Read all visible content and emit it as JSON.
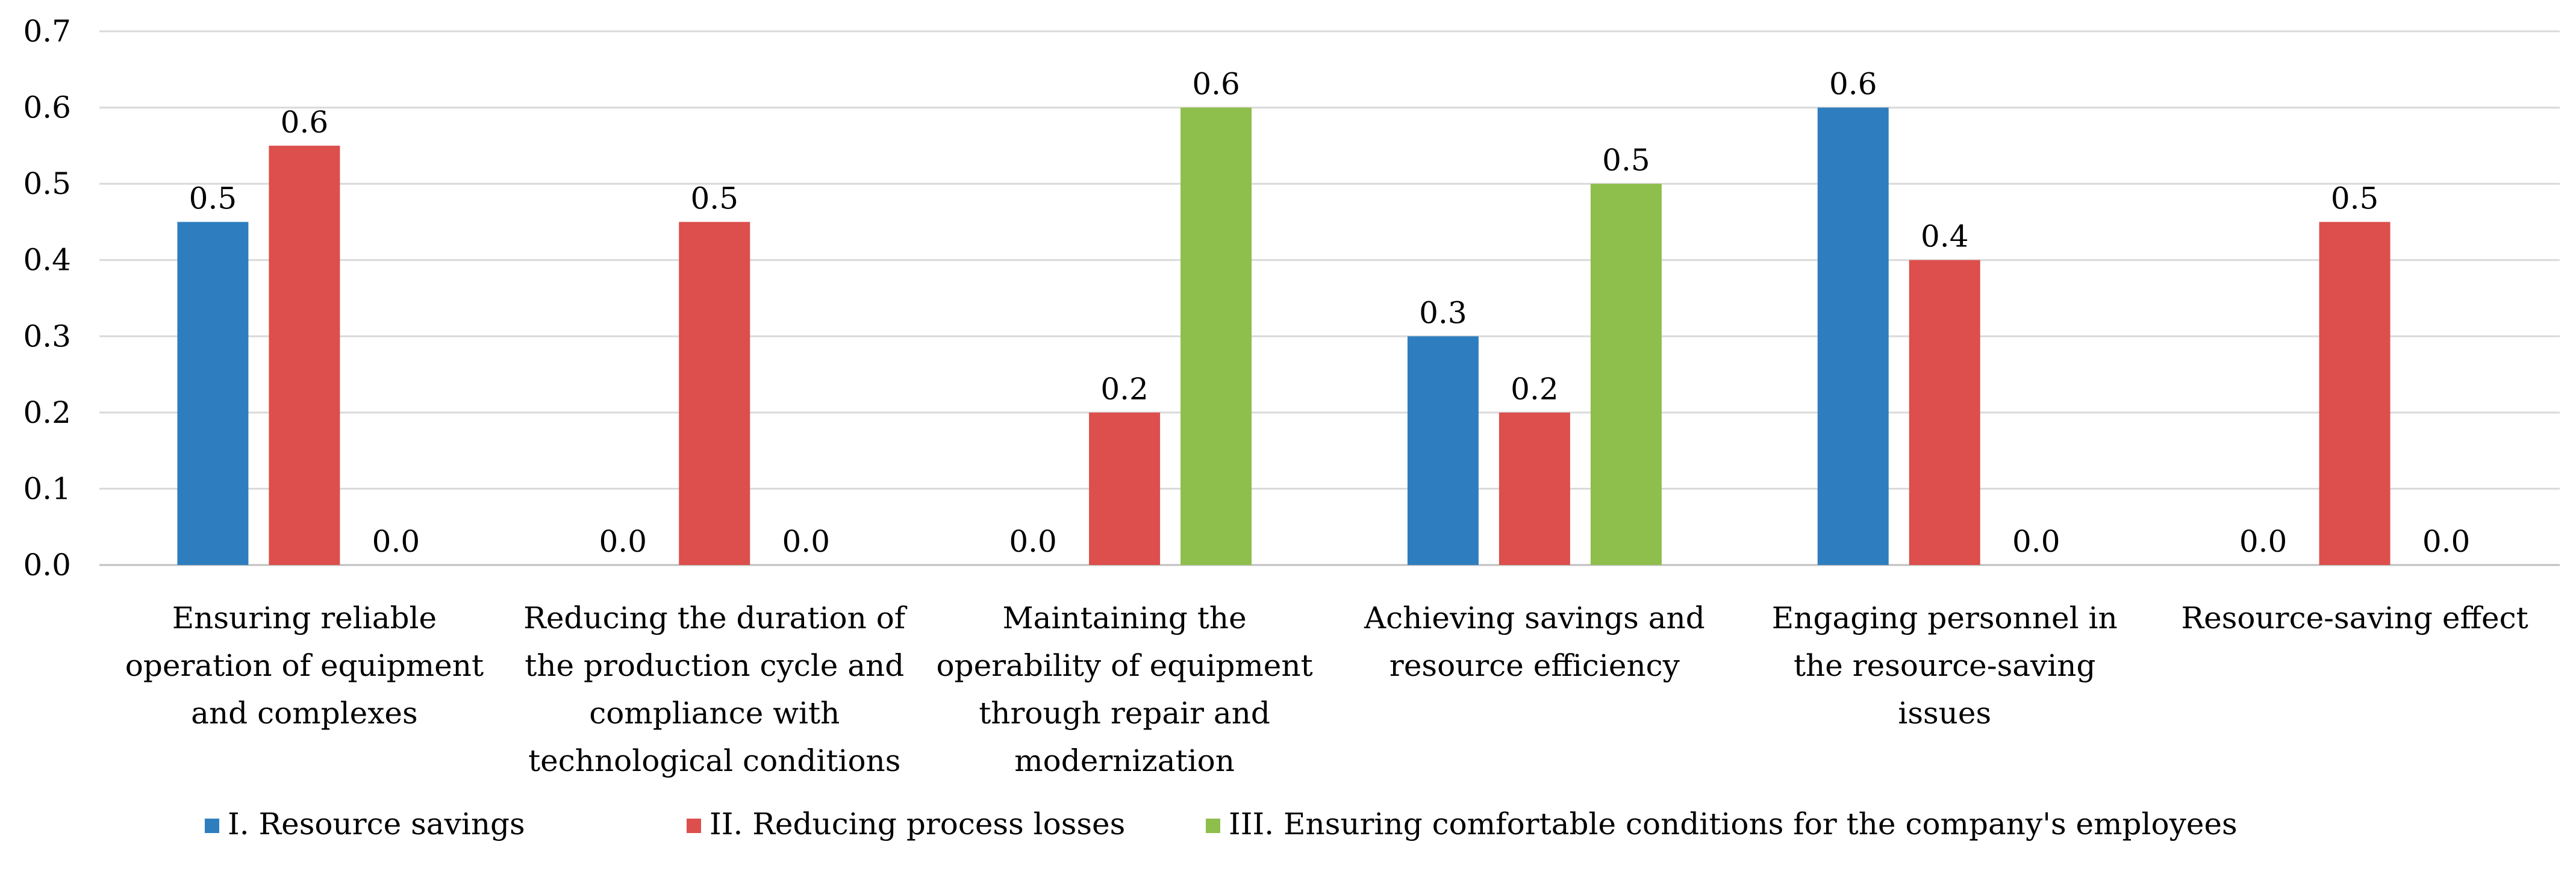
{
  "chart_data": {
    "type": "bar",
    "title": "",
    "xlabel": "",
    "ylabel": "",
    "ylim": [
      0,
      0.7
    ],
    "yticks": [
      "0.0",
      "0.1",
      "0.2",
      "0.3",
      "0.4",
      "0.5",
      "0.6",
      "0.7"
    ],
    "grid": true,
    "legend_position": "bottom",
    "categories": [
      [
        "Ensuring reliable",
        "operation of equipment",
        "and complexes"
      ],
      [
        "Reducing the duration of",
        "the production cycle and",
        "compliance with",
        "technological conditions"
      ],
      [
        "Maintaining the",
        "operability of equipment",
        "through repair and",
        "modernization"
      ],
      [
        "Achieving savings and",
        "resource efficiency"
      ],
      [
        "Engaging personnel in",
        "the resource-saving",
        "issues"
      ],
      [
        "Resource-saving effect"
      ]
    ],
    "series": [
      {
        "name": "I. Resource savings",
        "color": "#2e7ebf",
        "values": [
          0.45,
          0.0,
          0.0,
          0.3,
          0.6,
          0.0
        ],
        "labels": [
          "0.5",
          "0.0",
          "0.0",
          "0.3",
          "0.6",
          "0.0"
        ]
      },
      {
        "name": "II. Reducing process losses",
        "color": "#dc4f4c",
        "values": [
          0.55,
          0.45,
          0.2,
          0.2,
          0.4,
          0.45
        ],
        "labels": [
          "0.6",
          "0.5",
          "0.2",
          "0.2",
          "0.4",
          "0.5"
        ]
      },
      {
        "name": "III. Ensuring comfortable conditions for the company's employees",
        "color": "#8ebe4c",
        "values": [
          0.0,
          0.0,
          0.6,
          0.5,
          0.0,
          0.0
        ],
        "labels": [
          "0.0",
          "0.0",
          "0.6",
          "0.5",
          "0.0",
          "0.0"
        ]
      }
    ]
  }
}
